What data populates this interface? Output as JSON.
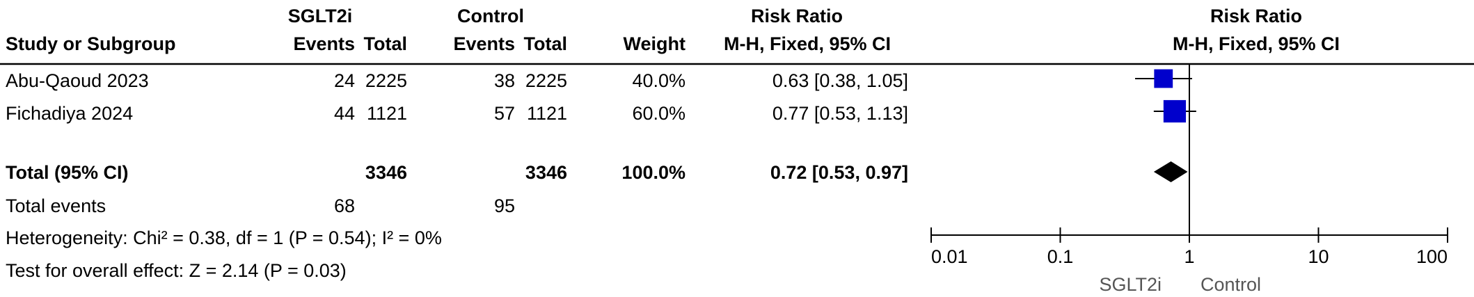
{
  "header": {
    "group1": "SGLT2i",
    "group2": "Control",
    "effect_title": "Risk Ratio",
    "effect_method": "M-H, Fixed, 95% CI",
    "plot_title": "Risk Ratio",
    "plot_method": "M-H, Fixed, 95% CI",
    "col_study": "Study or Subgroup",
    "col_events1": "Events",
    "col_total1": "Total",
    "col_events2": "Events",
    "col_total2": "Total",
    "col_weight": "Weight"
  },
  "studies": [
    {
      "name": "Abu-Qaoud 2023",
      "events1": "24",
      "total1": "2225",
      "events2": "38",
      "total2": "2225",
      "weight": "40.0%",
      "ci_text": "0.63 [0.38, 1.05]"
    },
    {
      "name": "Fichadiya 2024",
      "events1": "44",
      "total1": "1121",
      "events2": "57",
      "total2": "1121",
      "weight": "60.0%",
      "ci_text": "0.77 [0.53, 1.13]"
    }
  ],
  "total": {
    "label": "Total (95% CI)",
    "total1": "3346",
    "total2": "3346",
    "weight": "100.0%",
    "ci_text": "0.72 [0.53, 0.97]"
  },
  "total_events": {
    "label": "Total events",
    "events1": "68",
    "events2": "95"
  },
  "heterogeneity": "Heterogeneity: Chi² = 0.38, df = 1 (P = 0.54); I² = 0%",
  "overall_effect": "Test for overall effect: Z = 2.14 (P = 0.03)",
  "axis": {
    "ticks": [
      "0.01",
      "0.1",
      "1",
      "10",
      "100"
    ],
    "favours_left": "SGLT2i",
    "favours_right": "Control"
  },
  "colors": {
    "marker": "#0000cc",
    "diamond": "#000000",
    "line": "#000000"
  },
  "chart_data": {
    "type": "scatter",
    "scale": "log",
    "xlim": [
      0.01,
      100
    ],
    "null_value": 1,
    "points": [
      {
        "study": "Abu-Qaoud 2023",
        "rr": 0.63,
        "lower": 0.38,
        "upper": 1.05,
        "weight": 40.0
      },
      {
        "study": "Fichadiya 2024",
        "rr": 0.77,
        "lower": 0.53,
        "upper": 1.13,
        "weight": 60.0
      }
    ],
    "pooled": {
      "rr": 0.72,
      "lower": 0.53,
      "upper": 0.97
    }
  }
}
